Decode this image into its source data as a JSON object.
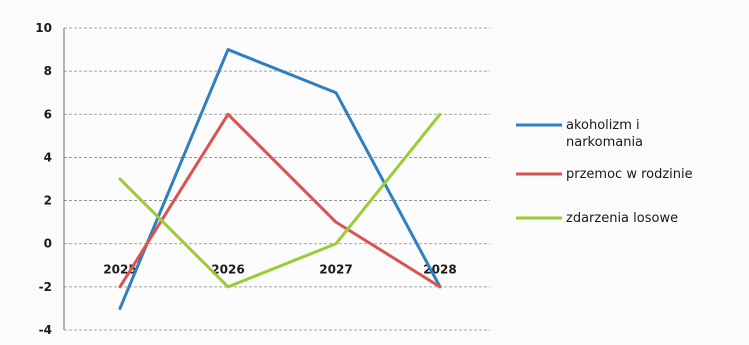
{
  "chart_data": {
    "type": "line",
    "categories": [
      "2025",
      "2026",
      "2027",
      "2028"
    ],
    "ylim": [
      -4,
      10
    ],
    "yticks": [
      10,
      8,
      6,
      4,
      2,
      0,
      -2,
      -4
    ],
    "grid": "horizontal",
    "legend_position": "right",
    "series": [
      {
        "name": "akoholizm i narkomania",
        "color": "#2f7fc1",
        "values": [
          -3,
          9,
          7,
          -2
        ]
      },
      {
        "name": "przemoc w rodzinie",
        "color": "#d9534f",
        "values": [
          -2,
          6,
          1,
          -2
        ]
      },
      {
        "name": "zdarzenia losowe",
        "color": "#9acd32",
        "values": [
          3,
          -2,
          0,
          6
        ]
      }
    ],
    "legend_lines": [
      [
        "akoholizm i",
        "narkomania"
      ],
      [
        "przemoc w rodzinie"
      ],
      [
        "zdarzenia losowe"
      ]
    ]
  }
}
